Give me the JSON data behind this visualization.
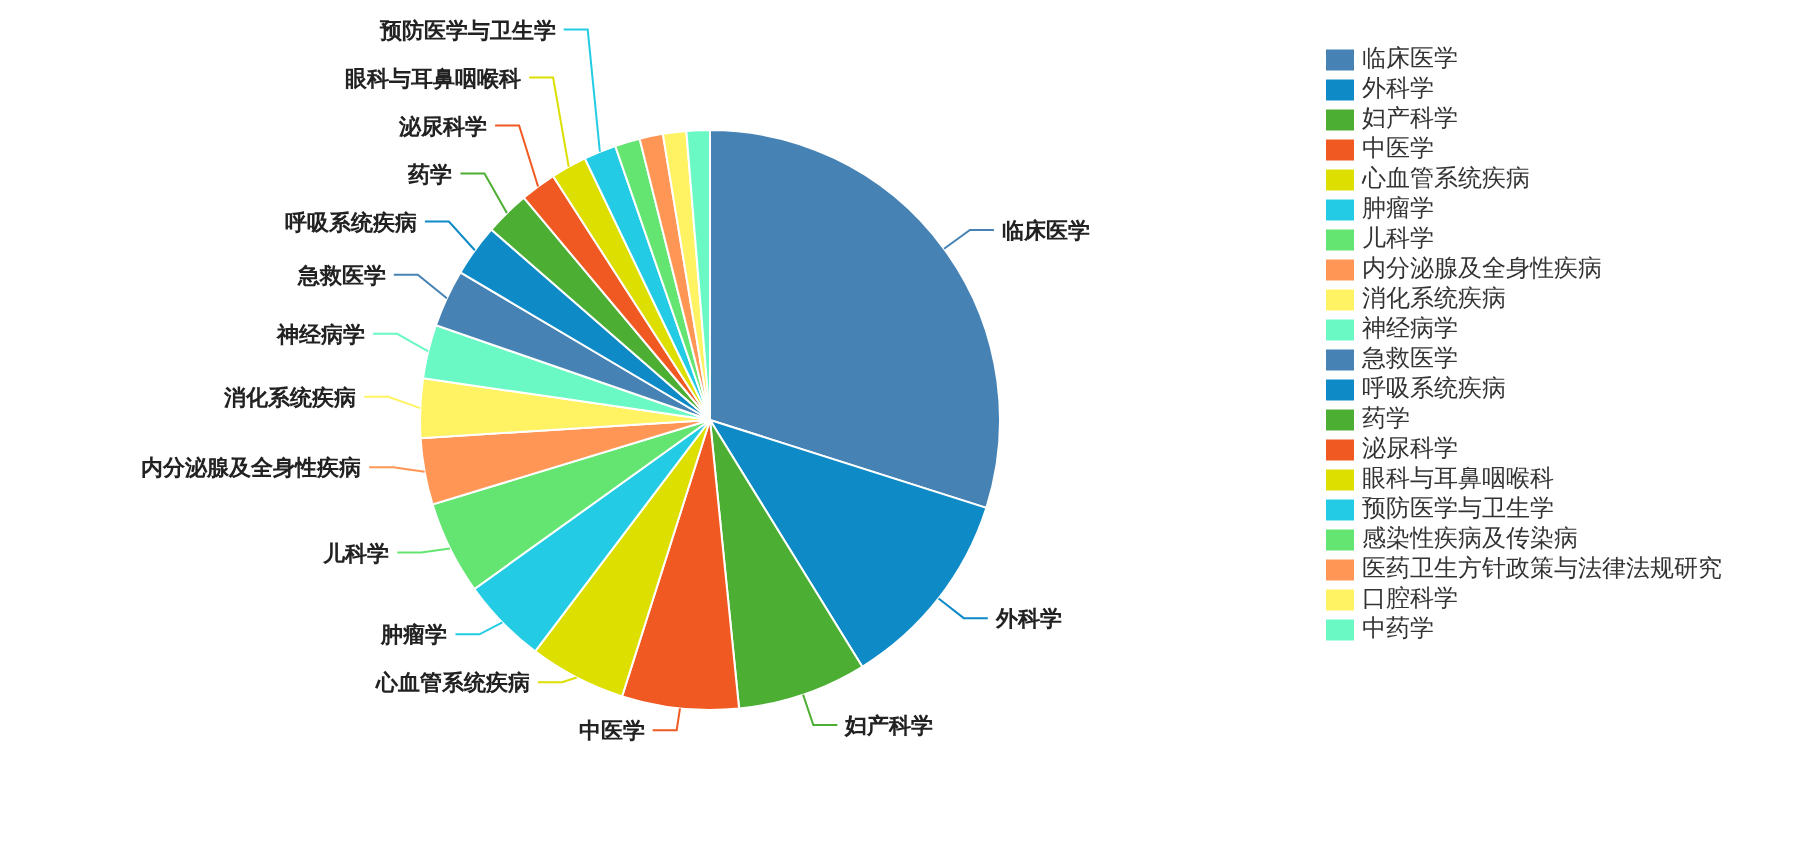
{
  "chart_data": {
    "type": "pie",
    "legend": "top right",
    "categories": [
      "临床医学",
      "外科学",
      "妇产科学",
      "中医学",
      "心血管系统疾病",
      "肿瘤学",
      "儿科学",
      "内分泌腺及全身性疾病",
      "消化系统疾病",
      "神经病学",
      "急救医学",
      "呼吸系统疾病",
      "药学",
      "泌尿科学",
      "眼科与耳鼻咽喉科",
      "预防医学与卫生学",
      "感染性疾病及传染病",
      "医药卫生方针政策与法律法规研究",
      "口腔科学",
      "中药学"
    ],
    "values": [
      29.9,
      11.3,
      7.2,
      6.5,
      5.4,
      4.8,
      5.2,
      3.7,
      3.3,
      3.0,
      3.2,
      2.9,
      2.5,
      2.0,
      2.0,
      1.8,
      1.4,
      1.3,
      1.3,
      1.3
    ],
    "colors": [
      "#4682b4",
      "#0e8ac7",
      "#4cae33",
      "#f05a22",
      "#dddf00",
      "#24cbe5",
      "#64e572",
      "#ff9655",
      "#fff263",
      "#6af9c4",
      "#4682b4",
      "#0e8ac7",
      "#4cae33",
      "#f05a22",
      "#dddf00",
      "#24cbe5",
      "#64e572",
      "#ff9655",
      "#fff263",
      "#6af9c4"
    ]
  }
}
